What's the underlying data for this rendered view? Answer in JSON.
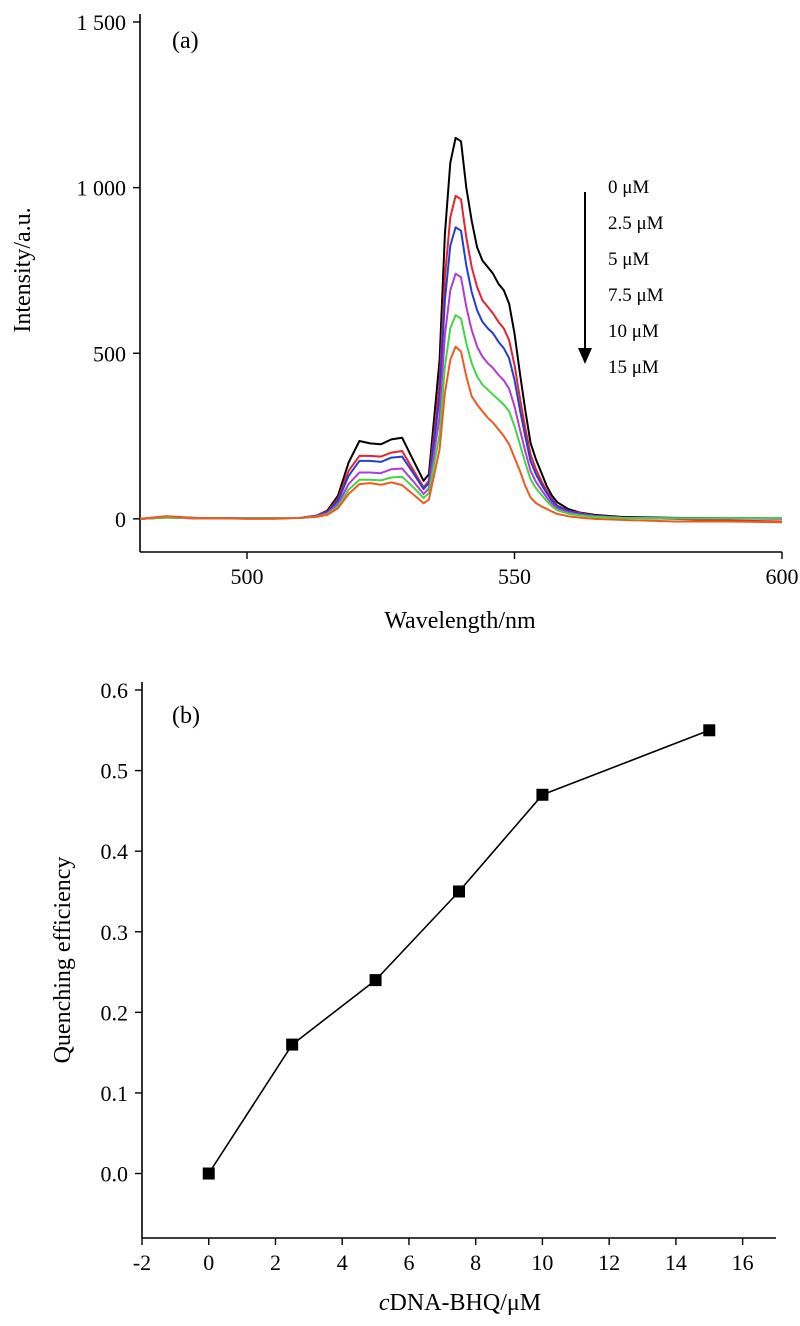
{
  "chart_data": [
    {
      "type": "line",
      "panel_label": "(a)",
      "xlabel": "Wavelength/nm",
      "ylabel": "Intensity/a.u.",
      "xlim": [
        480,
        600
      ],
      "ylim": [
        -100,
        1500
      ],
      "x_ticks": [
        500,
        550,
        600
      ],
      "x_tick_labels": [
        "500",
        "550",
        "600"
      ],
      "y_ticks": [
        0,
        500,
        1000,
        1500
      ],
      "y_tick_labels": [
        "0",
        "500",
        "1 000",
        "1 500"
      ],
      "grid": false,
      "arrow_direction": "down",
      "legend_position": "top-right",
      "series": [
        {
          "name": "0 μM",
          "color": "#000000",
          "x": [
            480,
            485,
            490,
            495,
            500,
            505,
            510,
            513,
            515,
            517,
            519,
            521,
            523,
            525,
            527,
            529,
            531,
            533,
            534,
            536,
            537,
            538,
            539,
            540,
            541,
            542,
            543,
            544,
            545,
            546,
            547,
            548,
            549,
            550,
            551,
            552,
            553,
            554,
            555,
            556,
            557,
            558,
            560,
            562,
            565,
            570,
            580,
            590,
            600
          ],
          "y": [
            0,
            5,
            3,
            2,
            2,
            2,
            3,
            10,
            25,
            70,
            170,
            235,
            228,
            225,
            240,
            245,
            180,
            115,
            135,
            480,
            860,
            1075,
            1150,
            1140,
            1000,
            900,
            820,
            780,
            760,
            740,
            710,
            690,
            650,
            560,
            440,
            330,
            230,
            180,
            140,
            100,
            70,
            50,
            30,
            20,
            12,
            6,
            3,
            2,
            2
          ]
        },
        {
          "name": "2.5 μM",
          "color": "#e8222e",
          "x": [
            480,
            485,
            490,
            495,
            500,
            505,
            510,
            513,
            515,
            517,
            519,
            521,
            523,
            525,
            527,
            529,
            531,
            533,
            534,
            536,
            537,
            538,
            539,
            540,
            541,
            542,
            543,
            544,
            545,
            546,
            547,
            548,
            549,
            550,
            551,
            552,
            553,
            554,
            555,
            556,
            557,
            558,
            560,
            562,
            565,
            570,
            580,
            590,
            600
          ],
          "y": [
            0,
            8,
            3,
            2,
            2,
            2,
            3,
            10,
            22,
            60,
            145,
            190,
            190,
            188,
            200,
            205,
            150,
            95,
            115,
            410,
            730,
            910,
            975,
            965,
            850,
            760,
            700,
            660,
            640,
            620,
            595,
            575,
            540,
            465,
            365,
            275,
            195,
            150,
            115,
            85,
            60,
            40,
            25,
            18,
            10,
            4,
            0,
            -5,
            -8
          ]
        },
        {
          "name": "5 μM",
          "color": "#1f3fd6",
          "x": [
            480,
            485,
            490,
            495,
            500,
            505,
            510,
            513,
            515,
            517,
            519,
            521,
            523,
            525,
            527,
            529,
            531,
            533,
            534,
            536,
            537,
            538,
            539,
            540,
            541,
            542,
            543,
            544,
            545,
            546,
            547,
            548,
            549,
            550,
            551,
            552,
            553,
            554,
            555,
            556,
            557,
            558,
            560,
            562,
            565,
            570,
            580,
            590,
            600
          ],
          "y": [
            0,
            4,
            2,
            2,
            2,
            2,
            3,
            9,
            20,
            55,
            130,
            175,
            175,
            172,
            185,
            188,
            140,
            90,
            108,
            370,
            660,
            825,
            880,
            870,
            765,
            685,
            630,
            595,
            575,
            560,
            535,
            515,
            485,
            420,
            330,
            250,
            175,
            135,
            105,
            78,
            55,
            38,
            24,
            16,
            9,
            4,
            2,
            2,
            1
          ]
        },
        {
          "name": "7.5 μM",
          "color": "#b43ad8",
          "x": [
            480,
            485,
            490,
            495,
            500,
            505,
            510,
            513,
            515,
            517,
            519,
            521,
            523,
            525,
            527,
            529,
            531,
            533,
            534,
            536,
            537,
            538,
            539,
            540,
            541,
            542,
            543,
            544,
            545,
            546,
            547,
            548,
            549,
            550,
            551,
            552,
            553,
            554,
            555,
            556,
            557,
            558,
            560,
            562,
            565,
            570,
            580,
            590,
            600
          ],
          "y": [
            0,
            4,
            2,
            2,
            2,
            2,
            3,
            8,
            17,
            45,
            105,
            140,
            140,
            138,
            150,
            152,
            115,
            75,
            92,
            310,
            555,
            690,
            740,
            730,
            640,
            570,
            520,
            490,
            470,
            455,
            435,
            418,
            393,
            340,
            270,
            205,
            145,
            112,
            88,
            65,
            46,
            32,
            20,
            13,
            8,
            3,
            1,
            1,
            0
          ]
        },
        {
          "name": "10 μM",
          "color": "#42d642",
          "x": [
            480,
            485,
            490,
            495,
            500,
            505,
            510,
            513,
            515,
            517,
            519,
            521,
            523,
            525,
            527,
            529,
            531,
            533,
            534,
            536,
            537,
            538,
            539,
            540,
            541,
            542,
            543,
            544,
            545,
            546,
            547,
            548,
            549,
            550,
            551,
            552,
            553,
            554,
            555,
            556,
            557,
            558,
            560,
            562,
            565,
            570,
            580,
            590,
            600
          ],
          "y": [
            0,
            4,
            2,
            2,
            2,
            2,
            3,
            7,
            14,
            38,
            88,
            118,
            118,
            116,
            125,
            127,
            97,
            63,
            78,
            255,
            460,
            575,
            615,
            605,
            530,
            470,
            430,
            405,
            390,
            375,
            360,
            345,
            325,
            280,
            225,
            170,
            120,
            93,
            73,
            54,
            38,
            26,
            16,
            11,
            6,
            3,
            2,
            2,
            2
          ]
        },
        {
          "name": "15 μM",
          "color": "#f05a1e",
          "x": [
            480,
            485,
            490,
            495,
            500,
            505,
            510,
            513,
            515,
            517,
            519,
            521,
            523,
            525,
            527,
            529,
            531,
            533,
            534,
            536,
            537,
            538,
            539,
            540,
            541,
            542,
            543,
            544,
            545,
            546,
            547,
            548,
            549,
            550,
            551,
            552,
            553,
            554,
            555,
            556,
            557,
            558,
            560,
            562,
            565,
            570,
            580,
            590,
            600
          ],
          "y": [
            0,
            8,
            2,
            2,
            0,
            0,
            3,
            6,
            12,
            32,
            75,
            105,
            108,
            103,
            110,
            102,
            75,
            47,
            58,
            210,
            380,
            480,
            520,
            505,
            430,
            370,
            345,
            325,
            305,
            290,
            270,
            250,
            225,
            185,
            145,
            100,
            65,
            48,
            38,
            30,
            22,
            15,
            8,
            4,
            0,
            -3,
            -8,
            -8,
            -10
          ]
        }
      ]
    },
    {
      "type": "line",
      "panel_label": "(b)",
      "xlabel_prefix": "c",
      "xlabel_rest": "DNA-BHQ/μM",
      "ylabel": "Quenching efficiency",
      "xlim": [
        -2,
        17
      ],
      "ylim": [
        -0.08,
        0.6
      ],
      "x_ticks": [
        -2,
        0,
        2,
        4,
        6,
        8,
        10,
        12,
        14,
        16
      ],
      "x_tick_labels": [
        "-2",
        "0",
        "2",
        "4",
        "6",
        "8",
        "10",
        "12",
        "14",
        "16"
      ],
      "y_ticks": [
        0.0,
        0.1,
        0.2,
        0.3,
        0.4,
        0.5,
        0.6
      ],
      "y_tick_labels": [
        "0.0",
        "0.1",
        "0.2",
        "0.3",
        "0.4",
        "0.5",
        "0.6"
      ],
      "grid": false,
      "marker": "square",
      "series": [
        {
          "color": "#000000",
          "x": [
            0,
            2.5,
            5,
            7.5,
            10,
            15
          ],
          "y": [
            0.0,
            0.16,
            0.24,
            0.35,
            0.47,
            0.55
          ]
        }
      ]
    }
  ]
}
